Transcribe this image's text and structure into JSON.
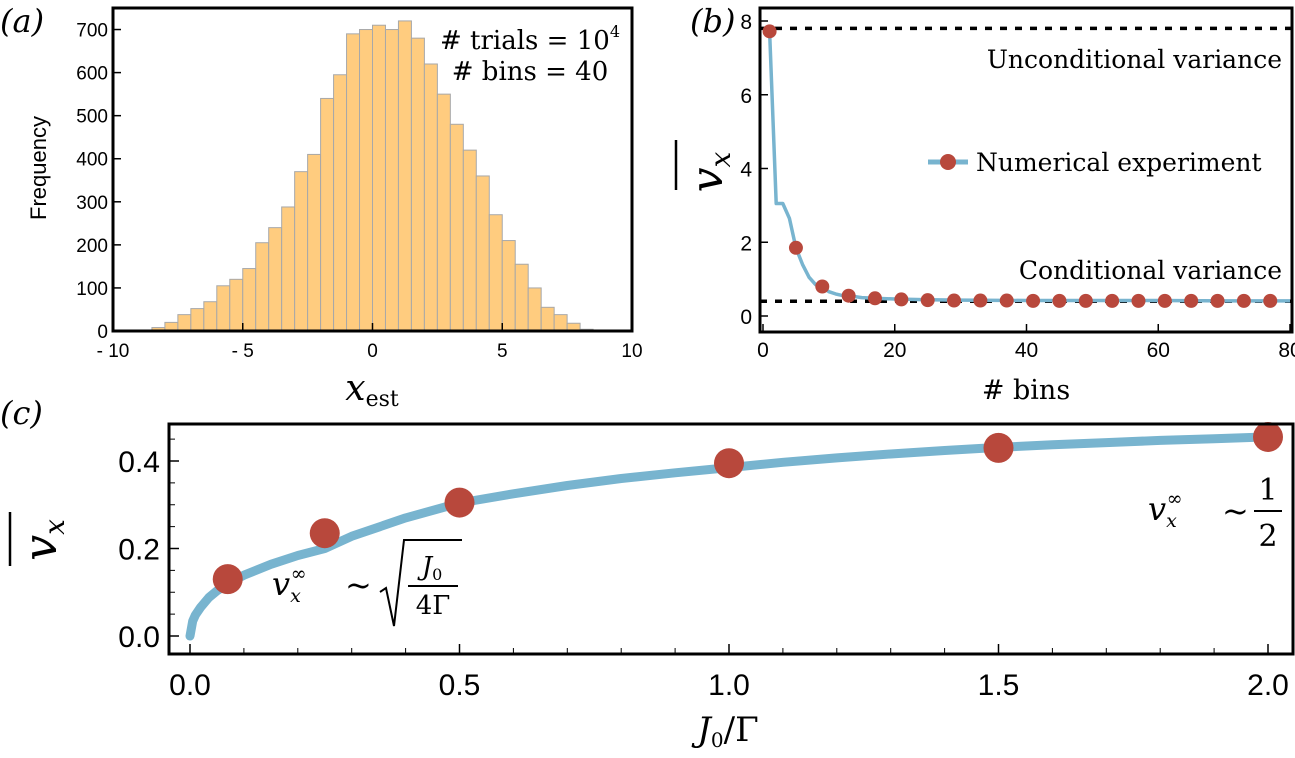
{
  "panels": {
    "a": {
      "tag": "(a)"
    },
    "b": {
      "tag": "(b)"
    },
    "c": {
      "tag": "(c)"
    }
  },
  "colors": {
    "histogram_fill": "#FFCC7F",
    "histogram_stroke": "#a8a8a8",
    "curve": "#78B4CF",
    "marker": "#B8483C",
    "reference_line": "#000000"
  },
  "chart_data": [
    {
      "panel": "a",
      "type": "bar",
      "subtype": "histogram",
      "xlabel": "x",
      "xlabel_sub": "est",
      "ylabel": "Frequency",
      "annotations": [
        {
          "text": "# trials = 10",
          "sup": "4"
        },
        {
          "text": "# bins = 40",
          "sup": ""
        }
      ],
      "xlim": [
        -10,
        10
      ],
      "ylim": [
        0,
        750
      ],
      "xticks": [
        -10,
        -5,
        0,
        5,
        10
      ],
      "xtick_labels": [
        "- 10",
        "- 5",
        "0",
        "5",
        "10"
      ],
      "yticks": [
        0,
        100,
        200,
        300,
        400,
        500,
        600,
        700
      ],
      "ytick_labels": [
        "0",
        "100",
        "200",
        "300",
        "400",
        "500",
        "600",
        "700"
      ],
      "bin_edges": [
        -9,
        -8.5,
        -8,
        -7.5,
        -7,
        -6.5,
        -6,
        -5.5,
        -5,
        -4.5,
        -4,
        -3.5,
        -3,
        -2.5,
        -2,
        -1.5,
        -1,
        -0.5,
        0,
        0.5,
        1,
        1.5,
        2,
        2.5,
        3,
        3.5,
        4,
        4.5,
        5,
        5.5,
        6,
        6.5,
        7,
        7.5,
        8,
        8.5
      ],
      "counts": [
        2,
        8,
        20,
        38,
        52,
        68,
        105,
        120,
        145,
        205,
        240,
        288,
        370,
        410,
        540,
        595,
        690,
        700,
        710,
        700,
        720,
        680,
        620,
        550,
        480,
        420,
        360,
        270,
        210,
        155,
        100,
        55,
        38,
        18,
        4
      ]
    },
    {
      "panel": "b",
      "type": "line",
      "xlabel": "# bins",
      "ylabel": "v",
      "ylabel_sub": "x",
      "xlim": [
        0,
        80
      ],
      "ylim": [
        0,
        8
      ],
      "xticks": [
        0,
        20,
        40,
        60,
        80
      ],
      "yticks": [
        0,
        2,
        4,
        6,
        8
      ],
      "series": [
        {
          "name": "Numerical experiment",
          "x": [
            1,
            2,
            3,
            4,
            5,
            6,
            7,
            8,
            9,
            10,
            11,
            12,
            13,
            15,
            17,
            20,
            25,
            30,
            40,
            50,
            60,
            70,
            80
          ],
          "y": [
            7.72,
            3.05,
            3.05,
            2.65,
            1.85,
            1.4,
            1.05,
            0.85,
            0.8,
            0.66,
            0.6,
            0.56,
            0.55,
            0.5,
            0.48,
            0.46,
            0.44,
            0.43,
            0.42,
            0.42,
            0.42,
            0.41,
            0.41
          ],
          "markers_x": [
            1,
            5,
            9,
            13,
            17,
            21,
            25,
            29,
            33,
            37,
            41,
            45,
            49,
            53,
            57,
            61,
            65,
            69,
            73,
            77
          ],
          "markers_y": [
            7.72,
            1.85,
            0.8,
            0.55,
            0.48,
            0.45,
            0.43,
            0.42,
            0.42,
            0.42,
            0.41,
            0.41,
            0.41,
            0.41,
            0.41,
            0.41,
            0.41,
            0.41,
            0.41,
            0.41
          ]
        }
      ],
      "reference_lines": [
        {
          "label": "Unconditional variance",
          "y": 7.8
        },
        {
          "label": "Conditional variance",
          "y": 0.4
        }
      ],
      "legend_placement": "center-right"
    },
    {
      "panel": "c",
      "type": "line",
      "xlabel": "J",
      "xlabel_sub": "0",
      "xlabel_rest": "/Γ",
      "ylabel": "v",
      "ylabel_sub": "x",
      "xlim": [
        -0.05,
        2.05
      ],
      "ylim": [
        -0.03,
        0.48
      ],
      "xticks": [
        0.0,
        0.5,
        1.0,
        1.5,
        2.0
      ],
      "xtick_labels": [
        "0.0",
        "0.5",
        "1.0",
        "1.5",
        "2.0"
      ],
      "yticks": [
        0.0,
        0.2,
        0.4
      ],
      "ytick_labels": [
        "0.0",
        "0.2",
        "0.4"
      ],
      "curve_samples_x": [
        0,
        0.005,
        0.01,
        0.02,
        0.035,
        0.05,
        0.075,
        0.1,
        0.15,
        0.2,
        0.25,
        0.3,
        0.4,
        0.5,
        0.6,
        0.7,
        0.8,
        0.9,
        1.0,
        1.1,
        1.2,
        1.3,
        1.4,
        1.5,
        1.6,
        1.7,
        1.8,
        1.9,
        2.0
      ],
      "curve_samples_y": [
        0.0,
        0.034,
        0.048,
        0.066,
        0.088,
        0.103,
        0.123,
        0.139,
        0.164,
        0.184,
        0.2,
        0.228,
        0.27,
        0.304,
        0.325,
        0.344,
        0.36,
        0.373,
        0.385,
        0.397,
        0.407,
        0.416,
        0.424,
        0.431,
        0.437,
        0.442,
        0.447,
        0.451,
        0.455
      ],
      "points_x": [
        0.07,
        0.25,
        0.5,
        1.0,
        1.5,
        2.0
      ],
      "points_y": [
        0.13,
        0.235,
        0.305,
        0.395,
        0.43,
        0.455
      ],
      "annotations": [
        {
          "text": "v",
          "sub": "x",
          "sup": "∞",
          "relation": "~",
          "expr": "sqrt(J0/4Γ)",
          "numerator": "J",
          "numerator_sub": "0",
          "denominator": "4Γ"
        },
        {
          "text": "v",
          "sub": "x",
          "sup": "∞",
          "relation": "~",
          "expr": "1/2",
          "numerator": "1",
          "denominator": "2"
        }
      ]
    }
  ]
}
